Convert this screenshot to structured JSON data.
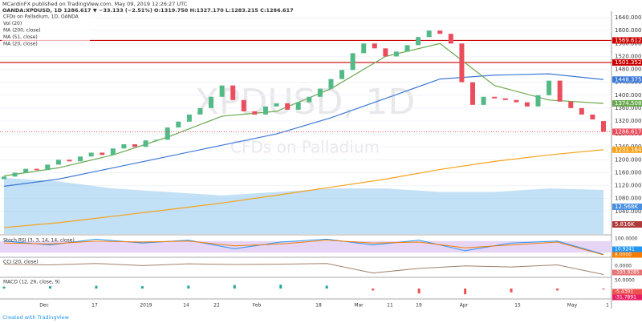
{
  "chart_data": {
    "type": "candlestick",
    "header": {
      "publisher": "MCardinFX published on TradingView.com, May 09, 2019 12:26:27 UTC",
      "symbol_line": "OANDA:XPDUSD, 1D 1286.617 ▼ −33.133 (−2.51%) O:1319.750 H:1327.170 L:1283.215 C:1286.617"
    },
    "legend": [
      "CFDs on Palladium, 1D, OANDA",
      "Vol (20)",
      "MA (200, close)",
      "MA (51, close)",
      "MA (20, close)"
    ],
    "watermark": [
      "XPDUSD, 1D",
      "CFDs on Palladium"
    ],
    "footer": "Created with TradingView",
    "xtick_labels": [
      "Dec",
      "17",
      "2019",
      "14",
      "22",
      "Feb",
      "18",
      "Mar",
      "11",
      "19",
      "Apr",
      "15",
      "May",
      "1"
    ],
    "open": [
      1140,
      1148,
      1160,
      1172,
      1168,
      1185,
      1200,
      1195,
      1210,
      1222,
      1215,
      1235,
      1248,
      1240,
      1260,
      1262,
      1300,
      1318,
      1340,
      1360,
      1395,
      1430,
      1385,
      1350,
      1340,
      1365,
      1375,
      1355,
      1378,
      1395,
      1420,
      1450,
      1478,
      1530,
      1560,
      1545,
      1520,
      1535,
      1555,
      1580,
      1600,
      1590,
      1560,
      1440,
      1370,
      1395,
      1390,
      1385,
      1378,
      1365,
      1400,
      1445,
      1380,
      1360,
      1340,
      1319.75
    ],
    "close": [
      1148,
      1160,
      1172,
      1168,
      1185,
      1200,
      1195,
      1210,
      1222,
      1215,
      1235,
      1248,
      1240,
      1260,
      1262,
      1300,
      1318,
      1340,
      1360,
      1395,
      1430,
      1385,
      1350,
      1340,
      1365,
      1375,
      1355,
      1378,
      1395,
      1420,
      1450,
      1478,
      1530,
      1560,
      1545,
      1520,
      1535,
      1555,
      1580,
      1600,
      1590,
      1560,
      1440,
      1370,
      1395,
      1390,
      1385,
      1378,
      1365,
      1400,
      1445,
      1380,
      1360,
      1340,
      1325,
      1286.617
    ],
    "close_label": "1286.617",
    "up_color": "#53b987",
    "down_color": "#eb4d5c",
    "ylim": [
      970,
      1660
    ],
    "yticks": [
      {
        "value": 1040,
        "label": "1040.000"
      },
      {
        "value": 1080,
        "label": "1080.000"
      },
      {
        "value": 1120,
        "label": "1120.000"
      },
      {
        "value": 1160,
        "label": "1160.000"
      },
      {
        "value": 1200,
        "label": "1200.000"
      },
      {
        "value": 1240,
        "label": "1240.000"
      },
      {
        "value": 1280,
        "label": "1280.000"
      },
      {
        "value": 1320,
        "label": "1320.000"
      },
      {
        "value": 1360,
        "label": "1360.000"
      },
      {
        "value": 1400,
        "label": "1400.000"
      },
      {
        "value": 1440,
        "label": "1440.000"
      },
      {
        "value": 1480,
        "label": "1480.000"
      },
      {
        "value": 1520,
        "label": "1520.000"
      },
      {
        "value": 1560,
        "label": "1560.000"
      },
      {
        "value": 1600,
        "label": "1600.000"
      },
      {
        "value": 1640,
        "label": "1640.000"
      }
    ],
    "horizontal_lines": [
      {
        "value": 1569.612,
        "label": "1569.612"
      },
      {
        "value": 1501.352,
        "label": "1501.352"
      }
    ],
    "series": [
      {
        "name": "MA (200, close)",
        "color": "#f7a21b",
        "values": [
          990,
          1005,
          1025,
          1045,
          1066,
          1090,
          1115,
          1140,
          1170,
          1195,
          1215,
          1231.164
        ],
        "last_label": "1231.164"
      },
      {
        "name": "MA (51, close)",
        "color": "#3c78d8",
        "values": [
          1118,
          1140,
          1175,
          1210,
          1245,
          1280,
          1330,
          1390,
          1450,
          1462,
          1466,
          1448.375
        ],
        "last_label": "1448.375"
      },
      {
        "name": "MA (20, close)",
        "color": "#6aa84f",
        "values": [
          1150,
          1175,
          1215,
          1270,
          1335,
          1350,
          1420,
          1520,
          1560,
          1430,
          1385,
          1374.508
        ],
        "last_label": "1374.508"
      }
    ],
    "volume": {
      "name": "Vol (20)",
      "color": "#8fc7ee",
      "values": [
        16,
        15,
        13,
        12,
        11,
        12,
        13,
        13,
        12,
        12,
        13,
        12.568
      ],
      "last_label": "12.568K",
      "current_label": "5.816K"
    },
    "stoch": {
      "title": "Stoch RSI (3, 3, 14, 14, close)",
      "k": [
        80,
        60,
        90,
        70,
        85,
        40,
        75,
        90,
        60,
        85,
        30,
        70,
        80,
        11
      ],
      "d": [
        70,
        65,
        80,
        75,
        80,
        55,
        65,
        85,
        70,
        75,
        45,
        60,
        75,
        8
      ],
      "labels": [
        "100.0000",
        "10.9241",
        "8.0000"
      ]
    },
    "cci": {
      "title": "CCI (20, close)",
      "values": [
        100,
        80,
        120,
        60,
        110,
        90,
        100,
        120,
        -150,
        -20,
        50,
        20,
        80,
        -194
      ],
      "labels": [
        "0.0000",
        "-193.9285"
      ]
    },
    "macd": {
      "title": "MACD (12, 26, close, 9)",
      "hist": [
        10,
        12,
        14,
        12,
        15,
        18,
        20,
        15,
        -10,
        -25,
        -30,
        -20,
        -10,
        -5
      ],
      "labels": [
        "50.0000",
        "-5.4391",
        "-31.7891"
      ]
    }
  }
}
